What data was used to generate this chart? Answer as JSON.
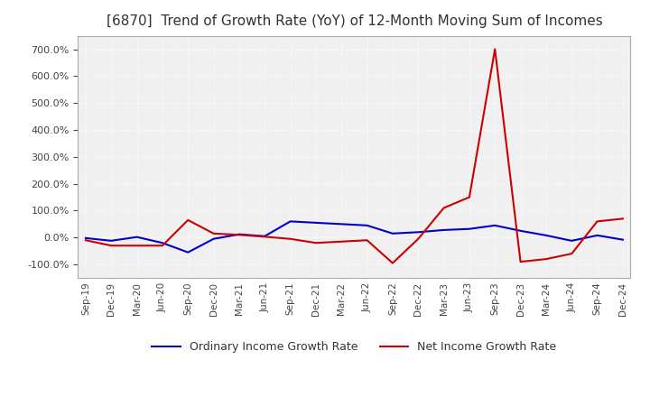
{
  "title": "[6870]  Trend of Growth Rate (YoY) of 12-Month Moving Sum of Incomes",
  "title_fontsize": 11,
  "ylim": [
    -150,
    750
  ],
  "yticks": [
    -100,
    0,
    100,
    200,
    300,
    400,
    500,
    600,
    700
  ],
  "background_color": "#ffffff",
  "plot_bg_color": "#f0f0f0",
  "grid_color": "#ffffff",
  "ordinary_color": "#0000cc",
  "net_color": "#cc0000",
  "legend_ordinary": "Ordinary Income Growth Rate",
  "legend_net": "Net Income Growth Rate",
  "x_labels": [
    "Sep-19",
    "Dec-19",
    "Mar-20",
    "Jun-20",
    "Sep-20",
    "Dec-20",
    "Mar-21",
    "Jun-21",
    "Sep-21",
    "Dec-21",
    "Mar-22",
    "Jun-22",
    "Sep-22",
    "Dec-22",
    "Mar-23",
    "Jun-23",
    "Sep-23",
    "Dec-23",
    "Mar-24",
    "Jun-24",
    "Sep-24",
    "Dec-24"
  ],
  "ordinary_income_growth": [
    -2,
    -12,
    2,
    -20,
    -55,
    -5,
    12,
    5,
    60,
    55,
    50,
    45,
    15,
    20,
    28,
    32,
    45,
    25,
    8,
    -12,
    8,
    -8
  ],
  "net_income_growth": [
    -10,
    -30,
    -30,
    -30,
    65,
    15,
    10,
    3,
    -5,
    -20,
    -15,
    -10,
    -95,
    -5,
    110,
    150,
    700,
    -90,
    -80,
    -60,
    60,
    70
  ]
}
